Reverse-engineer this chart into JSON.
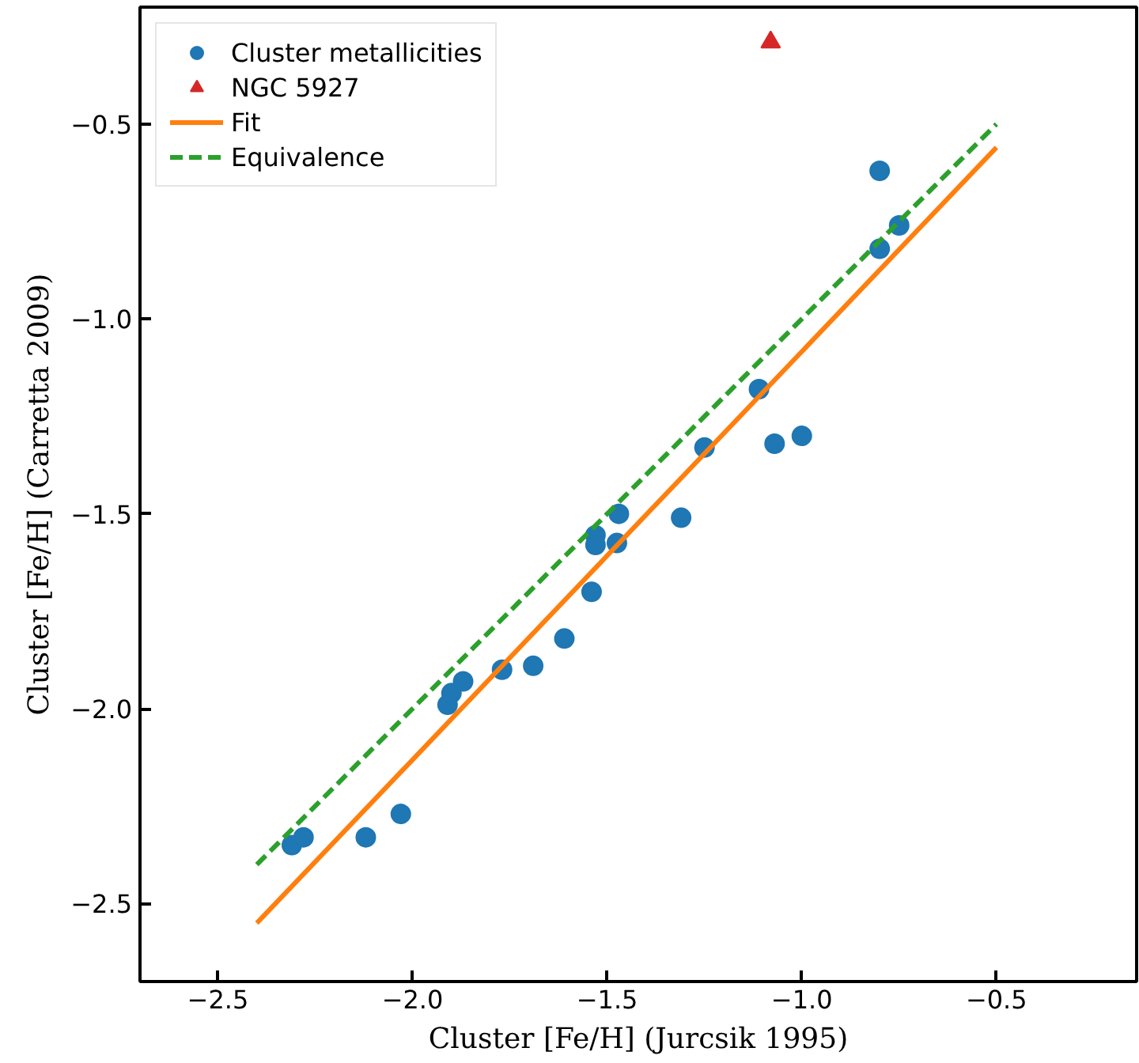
{
  "chart_data": {
    "type": "scatter",
    "xlabel": "Cluster [Fe/H] (Jurcsik 1995)",
    "ylabel": "Cluster [Fe/H] (Carretta 2009)",
    "xlim": [
      -2.7,
      -0.14
    ],
    "ylim": [
      -2.7,
      -0.2
    ],
    "xticks": [
      {
        "value": -2.5,
        "label": "−2.5"
      },
      {
        "value": -2.0,
        "label": "−2.0"
      },
      {
        "value": -1.5,
        "label": "−1.5"
      },
      {
        "value": -1.0,
        "label": "−1.0"
      },
      {
        "value": -0.5,
        "label": "−0.5"
      }
    ],
    "yticks": [
      {
        "value": -2.5,
        "label": "−2.5"
      },
      {
        "value": -2.0,
        "label": "−2.0"
      },
      {
        "value": -1.5,
        "label": "−1.5"
      },
      {
        "value": -1.0,
        "label": "−1.0"
      },
      {
        "value": -0.5,
        "label": "−0.5"
      }
    ],
    "grid": false,
    "legend": "top left",
    "series": [
      {
        "name": "Cluster metallicities",
        "marker": "circle",
        "color": "#1f77b4",
        "x": [
          -2.31,
          -2.28,
          -2.12,
          -2.03,
          -1.91,
          -1.9,
          -1.87,
          -1.77,
          -1.69,
          -1.61,
          -1.54,
          -1.53,
          -1.53,
          -1.475,
          -1.47,
          -1.31,
          -1.25,
          -1.11,
          -1.07,
          -1.0,
          -0.8,
          -0.8,
          -0.75
        ],
        "values": [
          -2.35,
          -2.33,
          -2.33,
          -2.27,
          -1.99,
          -1.96,
          -1.93,
          -1.9,
          -1.89,
          -1.82,
          -1.7,
          -1.555,
          -1.58,
          -1.575,
          -1.5,
          -1.51,
          -1.33,
          -1.18,
          -1.32,
          -1.3,
          -0.62,
          -0.82,
          -0.76
        ]
      },
      {
        "name": "NGC 5927",
        "marker": "triangle",
        "color": "#d62728",
        "x": [
          -1.08
        ],
        "values": [
          -0.29
        ]
      },
      {
        "name": "Fit",
        "type": "line",
        "line_style": "solid",
        "color": "#ff7f0e",
        "x": [
          -2.4,
          -0.5
        ],
        "values": [
          -2.55,
          -0.56
        ]
      },
      {
        "name": "Equivalence",
        "type": "line",
        "line_style": "dashed",
        "color": "#2ca02c",
        "x": [
          -2.4,
          -0.5
        ],
        "values": [
          -2.4,
          -0.5
        ]
      }
    ]
  }
}
